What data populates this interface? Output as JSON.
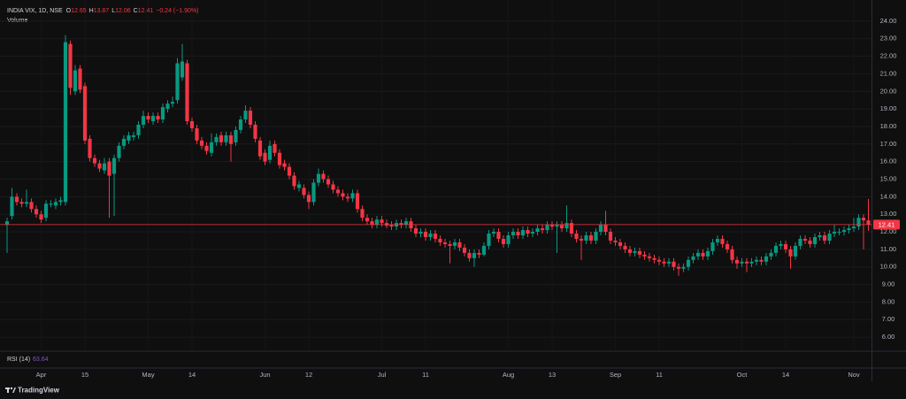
{
  "chart_data": {
    "type": "candlestick",
    "title": "INDIA VIX, 1D, NSE",
    "ohlc_labels": [
      "O",
      "H",
      "L",
      "C"
    ],
    "change": "−0.24 (−1.90%)",
    "volume_label": "Volume",
    "rsi": {
      "label": "RSI (14)",
      "value": 63.64
    },
    "branding": "TradingView",
    "up_color": "#089981",
    "down_color": "#f23645",
    "grid": true,
    "ylim": [
      5.3,
      24.7
    ],
    "yticks": [
      {
        "value": 6,
        "label": "6.00"
      },
      {
        "value": 7,
        "label": "7.00"
      },
      {
        "value": 8,
        "label": "8.00"
      },
      {
        "value": 9,
        "label": "9.00"
      },
      {
        "value": 10,
        "label": "10.00"
      },
      {
        "value": 11,
        "label": "11.00"
      },
      {
        "value": 12,
        "label": "12.00"
      },
      {
        "value": 13,
        "label": "13.00"
      },
      {
        "value": 14,
        "label": "14.00"
      },
      {
        "value": 15,
        "label": "15.00"
      },
      {
        "value": 16,
        "label": "16.00"
      },
      {
        "value": 17,
        "label": "17.00"
      },
      {
        "value": 18,
        "label": "18.00"
      },
      {
        "value": 19,
        "label": "19.00"
      },
      {
        "value": 20,
        "label": "20.00"
      },
      {
        "value": 21,
        "label": "21.00"
      },
      {
        "value": 22,
        "label": "22.00"
      },
      {
        "value": 23,
        "label": "23.00"
      },
      {
        "value": 24,
        "label": "24.00"
      }
    ],
    "categories": [
      null,
      null,
      null,
      null,
      null,
      null,
      null,
      "Apr",
      null,
      null,
      null,
      null,
      null,
      null,
      null,
      null,
      "15",
      null,
      null,
      null,
      null,
      null,
      null,
      null,
      null,
      null,
      null,
      null,
      null,
      "May",
      null,
      null,
      null,
      null,
      null,
      null,
      null,
      null,
      "14",
      null,
      null,
      null,
      null,
      null,
      null,
      null,
      null,
      null,
      null,
      null,
      null,
      null,
      null,
      "Jun",
      null,
      null,
      null,
      null,
      null,
      null,
      null,
      null,
      "12",
      null,
      null,
      null,
      null,
      null,
      null,
      null,
      null,
      null,
      null,
      null,
      null,
      null,
      null,
      "Jul",
      null,
      null,
      null,
      null,
      null,
      null,
      null,
      null,
      "11",
      null,
      null,
      null,
      null,
      null,
      null,
      null,
      null,
      null,
      null,
      null,
      null,
      null,
      null,
      null,
      null,
      "Aug",
      null,
      null,
      null,
      null,
      null,
      null,
      null,
      null,
      "13",
      null,
      null,
      null,
      null,
      null,
      null,
      null,
      null,
      null,
      null,
      null,
      null,
      "Sep",
      null,
      null,
      null,
      null,
      null,
      null,
      null,
      null,
      "11",
      null,
      null,
      null,
      null,
      null,
      null,
      null,
      null,
      null,
      null,
      null,
      null,
      null,
      null,
      null,
      null,
      "Oct",
      null,
      null,
      null,
      null,
      null,
      null,
      null,
      null,
      "14",
      null,
      null,
      null,
      null,
      null,
      null,
      null,
      null,
      null,
      null,
      null,
      null,
      null,
      "Nov",
      null,
      null,
      null
    ],
    "open": [
      12.4,
      12.9,
      14.0,
      13.7,
      13.6,
      13.7,
      13.3,
      13.0,
      12.8,
      13.6,
      13.5,
      13.7,
      13.7,
      22.7,
      20.0,
      21.3,
      20.3,
      17.3,
      16.2,
      15.9,
      15.5,
      16.0,
      15.3,
      16.2,
      16.9,
      17.2,
      17.4,
      17.5,
      18.1,
      18.6,
      18.3,
      18.6,
      18.4,
      19.0,
      19.3,
      19.5,
      20.8,
      21.6,
      18.3,
      17.9,
      17.2,
      16.9,
      16.5,
      17.1,
      17.5,
      17.1,
      17.5,
      17.1,
      17.8,
      18.4,
      18.9,
      18.1,
      17.2,
      16.5,
      16.1,
      17.0,
      16.5,
      15.9,
      15.7,
      15.2,
      14.5,
      14.5,
      14.1,
      13.7,
      14.8,
      15.3,
      15.0,
      14.7,
      14.4,
      14.2,
      14.0,
      13.9,
      14.2,
      13.3,
      12.8,
      12.6,
      12.4,
      12.7,
      12.5,
      12.4,
      12.3,
      12.5,
      12.4,
      12.6,
      12.2,
      11.9,
      12.0,
      11.7,
      11.9,
      11.6,
      11.4,
      11.3,
      11.2,
      11.4,
      11.1,
      10.8,
      10.5,
      10.8,
      10.7,
      11.2,
      11.9,
      12.0,
      11.6,
      11.3,
      11.8,
      12.0,
      11.8,
      12.1,
      11.9,
      12.0,
      12.2,
      12.1,
      12.4,
      12.3,
      12.4,
      12.2,
      12.5,
      11.9,
      11.6,
      11.5,
      11.8,
      11.5,
      12.0,
      12.4,
      12.0,
      11.5,
      11.4,
      11.2,
      11.0,
      10.8,
      10.9,
      10.7,
      10.6,
      10.5,
      10.4,
      10.3,
      10.2,
      10.3,
      10.0,
      9.9,
      10.0,
      10.4,
      10.6,
      10.8,
      10.6,
      10.9,
      11.4,
      11.6,
      11.3,
      11.0,
      10.4,
      10.2,
      10.3,
      10.2,
      10.3,
      10.4,
      10.3,
      10.6,
      10.8,
      11.2,
      11.3,
      11.0,
      10.6,
      11.2,
      11.6,
      11.5,
      11.3,
      11.7,
      11.8,
      11.5,
      11.9,
      12.0,
      12.0,
      12.1,
      12.2,
      12.3,
      12.8,
      12.65
    ],
    "high": [
      12.8,
      14.5,
      14.2,
      13.9,
      14.4,
      13.9,
      13.5,
      13.2,
      13.8,
      13.8,
      13.9,
      14.0,
      23.2,
      22.9,
      21.5,
      21.5,
      20.5,
      17.5,
      16.4,
      16.1,
      16.2,
      16.2,
      16.4,
      17.1,
      17.5,
      17.7,
      17.7,
      18.3,
      18.9,
      18.8,
      18.8,
      18.8,
      19.3,
      19.5,
      19.7,
      21.9,
      22.7,
      21.8,
      18.5,
      18.1,
      17.4,
      17.1,
      17.6,
      17.6,
      17.7,
      17.7,
      17.7,
      18.0,
      18.6,
      19.2,
      19.1,
      18.3,
      17.4,
      16.7,
      17.2,
      17.2,
      16.7,
      16.1,
      15.9,
      15.4,
      14.9,
      14.7,
      14.3,
      15.0,
      15.6,
      15.5,
      15.2,
      14.9,
      14.6,
      14.4,
      14.2,
      14.4,
      14.4,
      13.5,
      13.0,
      12.8,
      12.9,
      12.9,
      12.7,
      12.6,
      12.7,
      12.7,
      12.8,
      12.8,
      12.4,
      12.2,
      12.2,
      12.1,
      12.1,
      11.8,
      11.6,
      11.5,
      11.6,
      11.6,
      11.3,
      11.0,
      11.0,
      11.0,
      11.4,
      12.1,
      12.2,
      12.2,
      11.8,
      12.0,
      12.2,
      12.2,
      12.3,
      12.3,
      12.2,
      12.4,
      12.4,
      12.6,
      12.6,
      12.6,
      12.6,
      13.5,
      12.7,
      12.1,
      11.8,
      12.0,
      12.0,
      12.2,
      12.6,
      13.2,
      12.2,
      11.7,
      11.6,
      11.4,
      11.2,
      11.1,
      11.1,
      10.9,
      10.8,
      10.7,
      10.6,
      10.5,
      10.5,
      10.5,
      10.2,
      10.2,
      10.6,
      10.8,
      11.0,
      11.0,
      11.1,
      11.6,
      11.8,
      11.8,
      11.5,
      11.2,
      10.6,
      10.5,
      10.5,
      10.5,
      10.6,
      10.6,
      10.8,
      11.0,
      11.4,
      11.5,
      11.5,
      11.2,
      11.4,
      11.8,
      11.8,
      11.7,
      11.9,
      12.0,
      12.0,
      12.1,
      12.4,
      12.2,
      12.3,
      12.4,
      12.8,
      13.0,
      13.0,
      13.87
    ],
    "low": [
      10.8,
      12.7,
      13.5,
      13.4,
      13.4,
      13.1,
      12.8,
      12.5,
      12.6,
      13.4,
      13.3,
      13.5,
      13.5,
      19.8,
      19.8,
      19.9,
      17.0,
      16.0,
      15.7,
      15.4,
      15.3,
      12.8,
      12.9,
      16.0,
      16.7,
      17.0,
      17.2,
      17.3,
      17.9,
      18.2,
      18.1,
      18.2,
      18.2,
      18.8,
      19.1,
      19.3,
      20.6,
      18.1,
      17.7,
      17.0,
      16.7,
      16.4,
      16.3,
      16.9,
      16.9,
      16.9,
      16.0,
      16.9,
      17.6,
      18.2,
      17.9,
      17.1,
      16.1,
      15.8,
      15.9,
      16.3,
      15.6,
      15.5,
      15.0,
      14.4,
      14.3,
      13.9,
      13.3,
      13.5,
      14.6,
      14.8,
      14.5,
      14.2,
      14.0,
      13.8,
      13.7,
      13.7,
      13.1,
      12.6,
      12.4,
      12.2,
      12.2,
      12.3,
      12.2,
      12.1,
      12.1,
      12.2,
      12.2,
      12.0,
      11.7,
      11.7,
      11.5,
      11.5,
      11.4,
      11.2,
      11.1,
      10.2,
      11.0,
      10.9,
      10.6,
      10.3,
      10.0,
      10.5,
      10.6,
      11.0,
      11.7,
      11.4,
      11.1,
      11.1,
      11.6,
      11.6,
      11.6,
      11.7,
      11.7,
      11.8,
      11.9,
      11.9,
      12.1,
      10.8,
      12.0,
      12.0,
      11.7,
      11.4,
      10.4,
      11.3,
      11.3,
      11.3,
      11.8,
      11.8,
      11.3,
      11.2,
      11.0,
      10.8,
      10.6,
      10.6,
      10.5,
      10.4,
      10.3,
      10.2,
      10.1,
      10.0,
      10.0,
      9.8,
      9.5,
      9.7,
      9.8,
      10.2,
      10.4,
      10.4,
      10.4,
      10.7,
      11.2,
      11.1,
      10.8,
      10.2,
      9.9,
      10.0,
      9.7,
      10.0,
      10.1,
      10.1,
      10.1,
      10.4,
      10.6,
      11.0,
      10.8,
      9.9,
      10.4,
      11.0,
      11.3,
      11.1,
      11.1,
      11.5,
      11.3,
      11.3,
      11.7,
      11.8,
      11.8,
      11.9,
      12.0,
      12.1,
      11.0,
      12.06
    ],
    "close": [
      12.6,
      14.0,
      13.7,
      13.6,
      13.7,
      13.3,
      13.0,
      12.7,
      13.6,
      13.6,
      13.7,
      13.8,
      22.8,
      20.2,
      21.2,
      20.1,
      17.2,
      16.2,
      15.9,
      15.6,
      15.9,
      15.2,
      16.2,
      16.9,
      17.3,
      17.5,
      17.5,
      18.1,
      18.6,
      18.4,
      18.6,
      18.4,
      19.1,
      19.3,
      19.4,
      21.6,
      21.7,
      18.3,
      17.9,
      17.2,
      16.9,
      16.6,
      17.1,
      17.4,
      17.1,
      17.5,
      17.0,
      17.8,
      18.4,
      18.9,
      18.1,
      17.3,
      16.3,
      16.0,
      16.9,
      16.5,
      15.8,
      15.7,
      15.2,
      14.6,
      14.7,
      14.1,
      13.7,
      14.8,
      15.3,
      15.0,
      14.7,
      14.4,
      14.2,
      14.0,
      13.9,
      14.2,
      13.3,
      12.8,
      12.6,
      12.4,
      12.7,
      12.5,
      12.35,
      12.3,
      12.5,
      12.4,
      12.6,
      12.2,
      11.9,
      12.0,
      11.7,
      11.9,
      11.6,
      11.4,
      11.3,
      11.2,
      11.4,
      11.1,
      10.8,
      10.5,
      10.8,
      10.7,
      11.2,
      11.9,
      12.0,
      11.6,
      11.3,
      11.8,
      12.0,
      11.8,
      12.1,
      11.9,
      12.0,
      12.2,
      12.1,
      12.4,
      12.3,
      12.4,
      12.2,
      12.5,
      11.9,
      11.6,
      11.5,
      11.8,
      11.5,
      12.0,
      12.4,
      12.0,
      11.5,
      11.4,
      11.2,
      11.0,
      10.8,
      10.9,
      10.7,
      10.6,
      10.5,
      10.4,
      10.3,
      10.2,
      10.3,
      10.0,
      9.9,
      10.0,
      10.4,
      10.6,
      10.8,
      10.6,
      10.9,
      11.4,
      11.6,
      11.3,
      11.0,
      10.4,
      10.2,
      10.3,
      10.2,
      10.3,
      10.4,
      10.3,
      10.6,
      10.8,
      11.2,
      11.3,
      11.0,
      10.6,
      11.2,
      11.6,
      11.5,
      11.3,
      11.7,
      11.8,
      11.5,
      11.9,
      12.0,
      12.0,
      12.1,
      12.2,
      12.3,
      12.8,
      12.65,
      12.41
    ]
  }
}
